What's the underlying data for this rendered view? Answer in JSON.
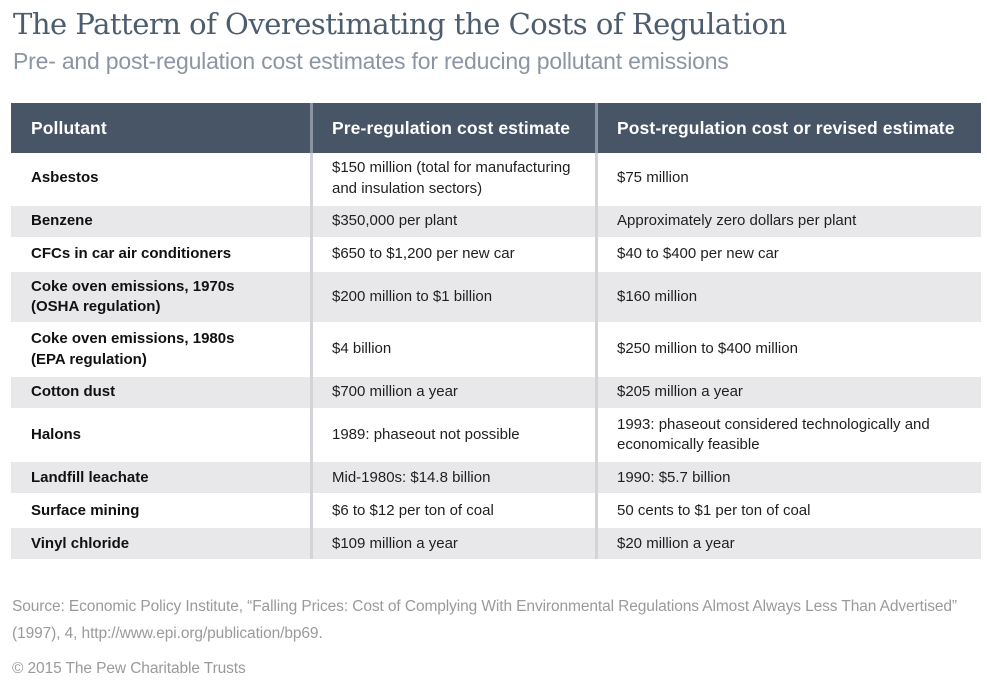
{
  "title": "The Pattern of Overestimating the Costs of Regulation",
  "subtitle": "Pre- and post-regulation cost estimates for reducing pollutant emissions",
  "chart_data": {
    "type": "table",
    "title": "The Pattern of Overestimating the Costs of Regulation",
    "subtitle": "Pre- and post-regulation cost estimates for reducing pollutant emissions",
    "columns": [
      "Pollutant",
      "Pre-regulation cost estimate",
      "Post-regulation cost or revised estimate"
    ],
    "rows": [
      {
        "pollutant": "Asbestos",
        "pre": "$150 million (total for manufacturing and insulation sectors)",
        "post": "$75 million"
      },
      {
        "pollutant": "Benzene",
        "pre": "$350,000 per plant",
        "post": "Approximately zero dollars per plant"
      },
      {
        "pollutant": "CFCs in car air conditioners",
        "pre": "$650 to $1,200 per new car",
        "post": "$40 to $400 per new car"
      },
      {
        "pollutant": "Coke oven emissions, 1970s (OSHA regulation)",
        "pre": "$200 million to $1 billion",
        "post": "$160 million"
      },
      {
        "pollutant": "Coke oven emissions, 1980s (EPA regulation)",
        "pre": "$4 billion",
        "post": "$250 million to $400 million"
      },
      {
        "pollutant": "Cotton dust",
        "pre": "$700 million a year",
        "post": "$205 million a year"
      },
      {
        "pollutant": "Halons",
        "pre": "1989: phaseout not possible",
        "post": "1993: phaseout considered technologically and economically feasible"
      },
      {
        "pollutant": "Landfill leachate",
        "pre": "Mid-1980s: $14.8 billion",
        "post": "1990: $5.7 billion"
      },
      {
        "pollutant": "Surface mining",
        "pre": "$6 to $12 per ton of coal",
        "post": "50 cents to $1 per ton of coal"
      },
      {
        "pollutant": "Vinyl chloride",
        "pre": "$109 million a year",
        "post": "$20 million a year"
      }
    ]
  },
  "footer": {
    "source": "Source: Economic Policy Institute, “Falling Prices: Cost of Complying With Environmental Regulations Almost Always Less Than Advertised” (1997), 4, http://www.epi.org/publication/bp69.",
    "copyright": "© 2015 The Pew Charitable Trusts"
  },
  "colors": {
    "header_bg": "#475566",
    "row_alt_bg": "#e8e8ea",
    "title_text": "#4d5c6e",
    "subtitle_text": "#8d95a2",
    "divider_header": "#8a93a0",
    "divider_body": "#d4d4d8",
    "footer_text": "#9a9a9a"
  }
}
